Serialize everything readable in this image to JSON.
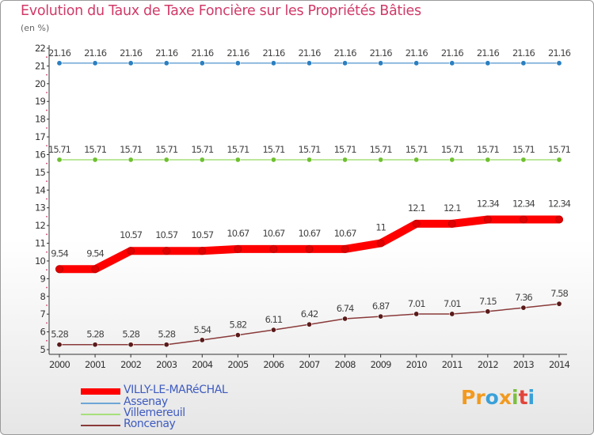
{
  "header": {
    "title": "Evolution du Taux de Taxe Foncière sur les Propriétés Bâties",
    "unit": "(en %)"
  },
  "chart_data": {
    "type": "line",
    "title": "Evolution du Taux de Taxe Foncière sur les Propriétés Bâties",
    "ylabel": "(en %)",
    "xlabel": "",
    "ylim": [
      5,
      22
    ],
    "yticks": [
      5,
      6,
      7,
      8,
      9,
      10,
      11,
      12,
      13,
      14,
      15,
      16,
      17,
      18,
      19,
      20,
      21,
      22
    ],
    "grid": false,
    "legend_position": "bottom-left",
    "x": [
      2000,
      2001,
      2002,
      2003,
      2004,
      2005,
      2006,
      2007,
      2008,
      2009,
      2010,
      2011,
      2012,
      2013,
      2014
    ],
    "series": [
      {
        "name": "VILLY-LE-MARéCHAL",
        "color": "#ff0000",
        "marker_color": "#e00000",
        "values": [
          9.54,
          9.54,
          10.57,
          10.57,
          10.57,
          10.67,
          10.67,
          10.67,
          10.67,
          11,
          12.1,
          12.1,
          12.34,
          12.34,
          12.34
        ],
        "labels": [
          "9.54",
          "9.54",
          "10.57",
          "10.57",
          "10.57",
          "10.67",
          "10.67",
          "10.67",
          "10.67",
          "11",
          "12.1",
          "12.1",
          "12.34",
          "12.34",
          "12.34"
        ]
      },
      {
        "name": "Assenay",
        "color": "#6fa6d6",
        "marker_color": "#2a7fc0",
        "values": [
          21.16,
          21.16,
          21.16,
          21.16,
          21.16,
          21.16,
          21.16,
          21.16,
          21.16,
          21.16,
          21.16,
          21.16,
          21.16,
          21.16,
          21.16
        ],
        "labels": [
          "21.16",
          "21.16",
          "21.16",
          "21.16",
          "21.16",
          "21.16",
          "21.16",
          "21.16",
          "21.16",
          "21.16",
          "21.16",
          "21.16",
          "21.16",
          "21.16",
          "21.16"
        ]
      },
      {
        "name": "Villemereuil",
        "color": "#a6e07a",
        "marker_color": "#6fc030",
        "values": [
          15.71,
          15.71,
          15.71,
          15.71,
          15.71,
          15.71,
          15.71,
          15.71,
          15.71,
          15.71,
          15.71,
          15.71,
          15.71,
          15.71,
          15.71
        ],
        "labels": [
          "15.71",
          "15.71",
          "15.71",
          "15.71",
          "15.71",
          "15.71",
          "15.71",
          "15.71",
          "15.71",
          "15.71",
          "15.71",
          "15.71",
          "15.71",
          "15.71",
          "15.71"
        ]
      },
      {
        "name": "Roncenay",
        "color": "#8a3a3a",
        "marker_color": "#5a1a1a",
        "values": [
          5.28,
          5.28,
          5.28,
          5.28,
          5.54,
          5.82,
          6.11,
          6.42,
          6.74,
          6.87,
          7.01,
          7.01,
          7.15,
          7.36,
          7.58
        ],
        "labels": [
          "5.28",
          "5.28",
          "5.28",
          "5.28",
          "5.54",
          "5.82",
          "6.11",
          "6.42",
          "6.74",
          "6.87",
          "7.01",
          "7.01",
          "7.15",
          "7.36",
          "7.58"
        ]
      }
    ]
  },
  "legend": {
    "items": [
      {
        "label": "VILLY-LE-MARéCHAL",
        "color": "#ff0000"
      },
      {
        "label": "Assenay",
        "color": "#6fa6d6"
      },
      {
        "label": "Villemereuil",
        "color": "#a6e07a"
      },
      {
        "label": "Roncenay",
        "color": "#8a3a3a"
      }
    ]
  },
  "logo": {
    "p1": "Pr",
    "p2": "o",
    "p3": "x",
    "p4": "i",
    "p5": "t",
    "p6": "i"
  }
}
